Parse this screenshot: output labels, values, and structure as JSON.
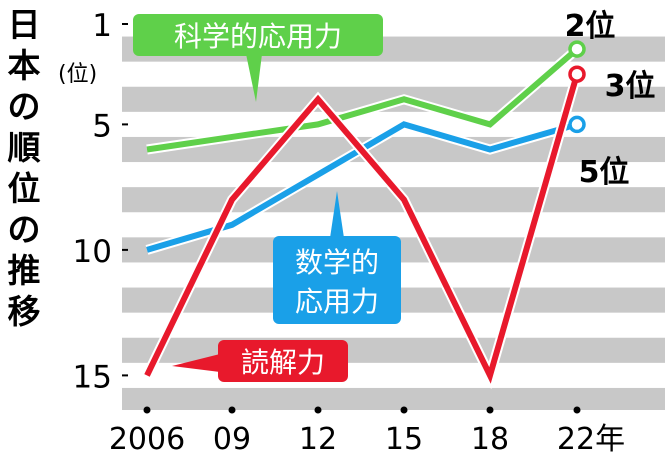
{
  "title_vertical": [
    "日",
    "本",
    "の",
    "順",
    "位",
    "の",
    "推",
    "移"
  ],
  "unit_label": "(位)",
  "colors": {
    "science": "#5fd04a",
    "math": "#1aa0e8",
    "reading": "#e8192c",
    "stripe": "#c8c8c8",
    "text": "#000000"
  },
  "chart_data": {
    "type": "line",
    "x": [
      "2006",
      "09",
      "12",
      "15",
      "18",
      "22"
    ],
    "x_tick_labels": [
      "2006",
      "09",
      "12",
      "15",
      "18",
      "22年"
    ],
    "y_axis": {
      "inverted": true,
      "ylim": [
        1,
        16
      ],
      "ticks": [
        1,
        5,
        10,
        15
      ]
    },
    "grid": "horizontal alternating bands",
    "series": [
      {
        "name": "科学的応用力",
        "key": "science",
        "values": [
          6,
          5.5,
          5,
          4,
          5,
          2
        ],
        "end_label": "2位"
      },
      {
        "name": "数学的応用力",
        "key": "math",
        "values": [
          10,
          9,
          7,
          5,
          6,
          5
        ],
        "end_label": "5位"
      },
      {
        "name": "読解力",
        "key": "reading",
        "values": [
          15,
          8,
          4,
          8,
          15,
          3
        ],
        "end_label": "3位"
      }
    ]
  }
}
